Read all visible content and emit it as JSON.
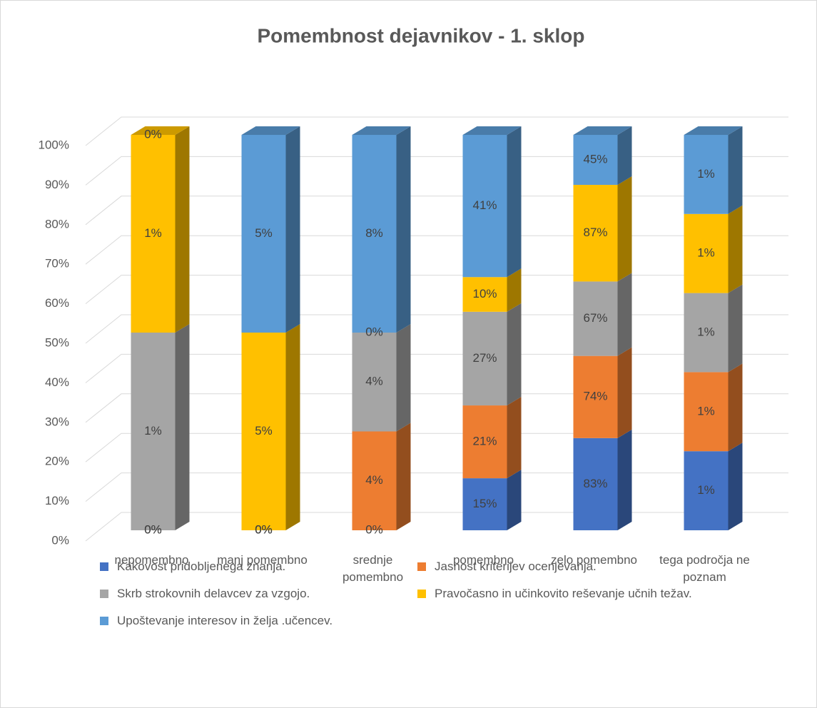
{
  "chart_data": {
    "type": "bar",
    "stacked": "percent",
    "title": "Pomembnost dejavnikov - 1. sklop",
    "categories": [
      "nepomembno",
      "manj pomembno",
      "srednje pomembno",
      "pomembno",
      "zelo pomembno",
      "tega področja ne poznam"
    ],
    "series": [
      {
        "name": "Kakovost pridobljenega znanja.",
        "color": "#4472c4",
        "values": [
          0,
          0,
          0,
          15,
          83,
          1
        ],
        "value_labels": [
          "0%",
          "0%",
          "0%",
          "15%",
          "83%",
          "1%"
        ]
      },
      {
        "name": "Jasnost kriterijev ocenjevanja.",
        "color": "#ed7d31",
        "values": [
          0,
          0,
          4,
          21,
          74,
          1
        ],
        "value_labels": [
          "0%",
          "0%",
          "4%",
          "21%",
          "74%",
          "1%"
        ]
      },
      {
        "name": "Skrb strokovnih delavcev za vzgojo.",
        "color": "#a5a5a5",
        "values": [
          1,
          0,
          4,
          27,
          67,
          1
        ],
        "value_labels": [
          "1%",
          "0%",
          "4%",
          "27%",
          "67%",
          "1%"
        ]
      },
      {
        "name": "Pravočasno in učinkovito reševanje učnih težav.",
        "color": "#ffc000",
        "values": [
          1,
          5,
          0,
          10,
          87,
          1
        ],
        "value_labels": [
          "1%",
          "5%",
          "0%",
          "10%",
          "87%",
          "1%"
        ]
      },
      {
        "name": "Upoštevanje interesov in želja .učencev.",
        "color": "#5b9bd5",
        "values": [
          0,
          5,
          8,
          41,
          45,
          1
        ],
        "value_labels": [
          "0%",
          "5%",
          "8%",
          "41%",
          "45%",
          "1%"
        ]
      }
    ],
    "ylim": [
      0,
      100
    ],
    "yticks": [
      {
        "value": 0,
        "label": "0%"
      },
      {
        "value": 10,
        "label": "10%"
      },
      {
        "value": 20,
        "label": "20%"
      },
      {
        "value": 30,
        "label": "30%"
      },
      {
        "value": 40,
        "label": "40%"
      },
      {
        "value": 50,
        "label": "50%"
      },
      {
        "value": 60,
        "label": "60%"
      },
      {
        "value": 70,
        "label": "70%"
      },
      {
        "value": 80,
        "label": "80%"
      },
      {
        "value": 90,
        "label": "90%"
      },
      {
        "value": 100,
        "label": "100%"
      }
    ],
    "grid": true
  }
}
